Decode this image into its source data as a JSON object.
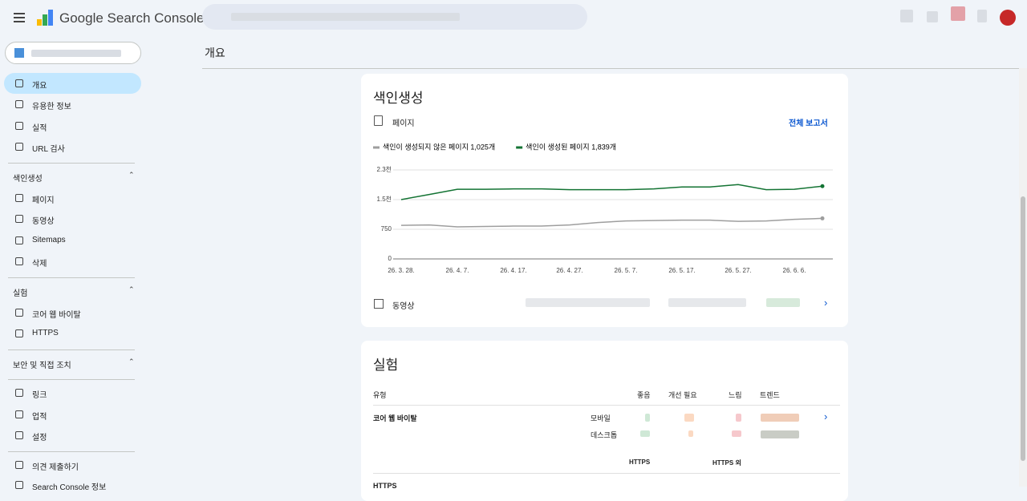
{
  "header": {
    "product": "Google Search Console"
  },
  "page_title": "개요",
  "nav": {
    "main": [
      "개요",
      "유용한 정보",
      "실적",
      "URL 검사"
    ],
    "sections": [
      {
        "title": "색인생성",
        "items": [
          "페이지",
          "동영상",
          "Sitemaps",
          "삭제"
        ]
      },
      {
        "title": "실험",
        "items": [
          "코어 웹 바이탈",
          "HTTPS"
        ]
      },
      {
        "title": "보안 및 직접 조치"
      }
    ],
    "extra": [
      "링크",
      "업적",
      "설정"
    ],
    "footer": [
      "의견 제출하기",
      "Search Console 정보"
    ]
  },
  "indexing_card": {
    "title": "색인생성",
    "pages_label": "페이지",
    "full_report": "전체 보고서",
    "video_label": "동영상"
  },
  "chart_data": {
    "type": "line",
    "categories": [
      "26. 3. 28.",
      null,
      "26. 4. 7.",
      null,
      "26. 4. 17.",
      null,
      "26. 4. 27.",
      null,
      "26. 5. 7.",
      null,
      "26. 5. 17.",
      null,
      "26. 5. 27.",
      null,
      "26. 6. 6.",
      null
    ],
    "series": [
      {
        "name": "색인이 생성되지 않은 페이지 1,025개",
        "color": "#9e9e9e",
        "values": [
          850,
          860,
          810,
          820,
          830,
          830,
          860,
          920,
          960,
          970,
          980,
          980,
          950,
          960,
          1000,
          1025
        ]
      },
      {
        "name": "색인이 생성된 페이지 1,839개",
        "color": "#137333",
        "values": [
          1500,
          1630,
          1760,
          1760,
          1770,
          1770,
          1750,
          1750,
          1750,
          1770,
          1820,
          1820,
          1880,
          1750,
          1760,
          1839
        ]
      }
    ],
    "ylim": [
      0,
      2250
    ],
    "yticks": [
      0,
      750,
      {
        "value": 1500,
        "label": "1.5천"
      },
      {
        "value": 2250,
        "label": "2.3천"
      }
    ],
    "grid": true,
    "legend": "top"
  },
  "experience_card": {
    "title": "실험",
    "headers": [
      "유형",
      "좋음",
      "개선 필요",
      "느림",
      "트렌드"
    ],
    "cwv_label": "코어 웹 바이탈",
    "devices": [
      "모바일",
      "데스크톱"
    ],
    "https_headers": [
      "HTTPS",
      "HTTPS 외"
    ],
    "https_label": "HTTPS"
  }
}
